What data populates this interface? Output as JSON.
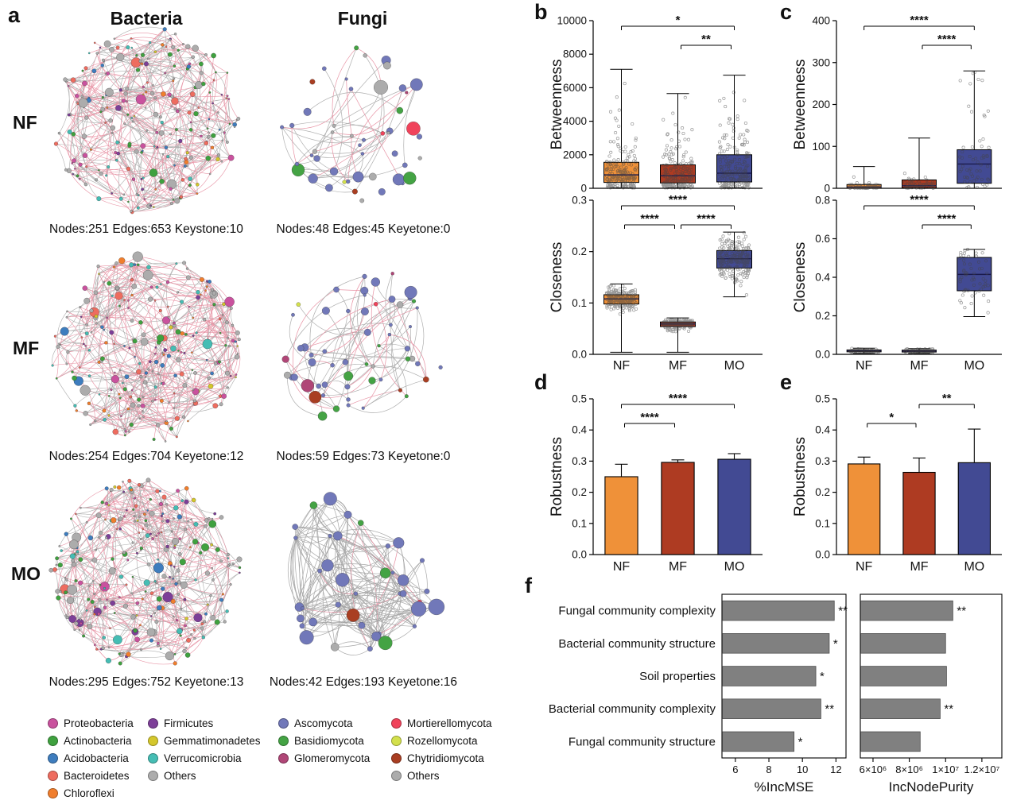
{
  "panels": {
    "a": {
      "label": "a",
      "columns": [
        "Bacteria",
        "Fungi"
      ],
      "rows": [
        "NF",
        "MF",
        "MO"
      ],
      "networks": [
        {
          "group": "NF",
          "kingdom": "Bacteria",
          "nodes": 251,
          "edges": 653,
          "caption": "Nodes:251 Edges:653 Keystone:10"
        },
        {
          "group": "NF",
          "kingdom": "Fungi",
          "nodes": 48,
          "edges": 45,
          "caption": "Nodes:48 Edges:45 Keyetone:0"
        },
        {
          "group": "MF",
          "kingdom": "Bacteria",
          "nodes": 254,
          "edges": 704,
          "caption": "Nodes:254 Edges:704 Keyetone:12"
        },
        {
          "group": "MF",
          "kingdom": "Fungi",
          "nodes": 59,
          "edges": 73,
          "caption": "Nodes:59 Edges:73 Keyetone:0"
        },
        {
          "group": "MO",
          "kingdom": "Bacteria",
          "nodes": 295,
          "edges": 752,
          "caption": "Nodes:295 Edges:752 Keyetone:13"
        },
        {
          "group": "MO",
          "kingdom": "Fungi",
          "nodes": 42,
          "edges": 193,
          "caption": "Nodes:42 Edges:193 Keyetone:16"
        }
      ],
      "legend_bacteria": [
        {
          "label": "Proteobacteria",
          "color": "#C9529E"
        },
        {
          "label": "Actinobacteria",
          "color": "#3FA13F"
        },
        {
          "label": "Acidobacteria",
          "color": "#3E7DBE"
        },
        {
          "label": "Bacteroidetes",
          "color": "#EE6C5F"
        },
        {
          "label": "Chloroflexi",
          "color": "#F07E2D"
        },
        {
          "label": "Firmicutes",
          "color": "#7D3F98"
        },
        {
          "label": "Gemmatimonadetes",
          "color": "#D4C72C"
        },
        {
          "label": "Verrucomicrobia",
          "color": "#45BDB4"
        },
        {
          "label": "Others",
          "color": "#ACACAC"
        }
      ],
      "legend_fungi": [
        {
          "label": "Ascomycota",
          "color": "#7178B9"
        },
        {
          "label": "Basidiomycota",
          "color": "#44A344"
        },
        {
          "label": "Glomeromycota",
          "color": "#B04677"
        },
        {
          "label": "Mortierellomycota",
          "color": "#F0435B"
        },
        {
          "label": "Rozellomycota",
          "color": "#D3E04C"
        },
        {
          "label": "Chytridiomycota",
          "color": "#A93E22"
        },
        {
          "label": "Others",
          "color": "#ACACAC"
        }
      ]
    },
    "b": {
      "label": "b"
    },
    "c": {
      "label": "c"
    },
    "d": {
      "label": "d"
    },
    "e": {
      "label": "e"
    },
    "f": {
      "label": "f"
    }
  },
  "palette": {
    "group_colors": {
      "NF": "#EF9139",
      "MF": "#AE3B22",
      "MO": "#424A93"
    },
    "bar_gray": "#808080",
    "edge_pink": "#E2798F",
    "edge_gray": "#9A9A9A"
  },
  "chart_data": [
    {
      "id": "b1",
      "type": "boxplot",
      "ylabel": "Betweenness",
      "ylim": [
        0,
        10000
      ],
      "yticks": [
        0,
        2000,
        4000,
        6000,
        8000,
        10000
      ],
      "ytick_fmt": "int",
      "categories": [
        "NF",
        "MF",
        "MO"
      ],
      "show_x_labels": false,
      "boxes": [
        {
          "min": 30,
          "q1": 350,
          "median": 800,
          "q3": 1550,
          "max": 7100,
          "n_points": 210,
          "dist": "exp"
        },
        {
          "min": 30,
          "q1": 320,
          "median": 750,
          "q3": 1400,
          "max": 5650,
          "n_points": 210,
          "dist": "exp"
        },
        {
          "min": 30,
          "q1": 380,
          "median": 900,
          "q3": 2000,
          "max": 6750,
          "n_points": 210,
          "dist": "exp"
        }
      ],
      "significance": [
        {
          "a": 0,
          "b": 2,
          "row": 0,
          "label": "*"
        },
        {
          "a": 1,
          "b": 2,
          "row": 1,
          "label": "**"
        }
      ]
    },
    {
      "id": "b2",
      "type": "boxplot",
      "ylabel": "Closeness",
      "ylim": [
        0,
        0.3
      ],
      "yticks": [
        0,
        0.1,
        0.2,
        0.3
      ],
      "ytick_fmt": "1dp",
      "categories": [
        "NF",
        "MF",
        "MO"
      ],
      "show_x_labels": true,
      "boxes": [
        {
          "min": 0.004,
          "q1": 0.098,
          "median": 0.108,
          "q3": 0.116,
          "max": 0.137,
          "n_points": 220,
          "dist": "normal"
        },
        {
          "min": 0.004,
          "q1": 0.054,
          "median": 0.059,
          "q3": 0.063,
          "max": 0.071,
          "n_points": 220,
          "dist": "normal"
        },
        {
          "min": 0.112,
          "q1": 0.168,
          "median": 0.186,
          "q3": 0.202,
          "max": 0.238,
          "n_points": 220,
          "dist": "normal"
        }
      ],
      "significance": [
        {
          "a": 0,
          "b": 2,
          "row": 0,
          "label": "****"
        },
        {
          "a": 0,
          "b": 1,
          "row": 1,
          "label": "****"
        },
        {
          "a": 1,
          "b": 2,
          "row": 1,
          "label": "****"
        }
      ]
    },
    {
      "id": "c1",
      "type": "boxplot",
      "ylabel": "Betweenness",
      "ylim": [
        0,
        400
      ],
      "yticks": [
        0,
        100,
        200,
        300,
        400
      ],
      "ytick_fmt": "int",
      "categories": [
        "NF",
        "MF",
        "MO"
      ],
      "show_x_labels": false,
      "boxes": [
        {
          "min": 0,
          "q1": 0,
          "median": 3,
          "q3": 9,
          "max": 52,
          "n_points": 65,
          "dist": "exp"
        },
        {
          "min": 0,
          "q1": 1,
          "median": 6,
          "q3": 20,
          "max": 120,
          "n_points": 70,
          "dist": "exp"
        },
        {
          "min": 0,
          "q1": 12,
          "median": 58,
          "q3": 92,
          "max": 280,
          "n_points": 58,
          "dist": "exp"
        }
      ],
      "significance": [
        {
          "a": 0,
          "b": 2,
          "row": 0,
          "label": "****"
        },
        {
          "a": 1,
          "b": 2,
          "row": 1,
          "label": "****"
        }
      ]
    },
    {
      "id": "c2",
      "type": "boxplot",
      "ylabel": "Closeness",
      "ylim": [
        0,
        0.8
      ],
      "yticks": [
        0,
        0.2,
        0.4,
        0.6,
        0.8
      ],
      "ytick_fmt": "1dp",
      "categories": [
        "NF",
        "MF",
        "MO"
      ],
      "show_x_labels": true,
      "boxes": [
        {
          "min": 0.005,
          "q1": 0.013,
          "median": 0.018,
          "q3": 0.023,
          "max": 0.032,
          "n_points": 65,
          "dist": "normal"
        },
        {
          "min": 0.005,
          "q1": 0.012,
          "median": 0.017,
          "q3": 0.022,
          "max": 0.03,
          "n_points": 70,
          "dist": "normal"
        },
        {
          "min": 0.196,
          "q1": 0.33,
          "median": 0.415,
          "q3": 0.503,
          "max": 0.545,
          "n_points": 58,
          "dist": "normal"
        }
      ],
      "significance": [
        {
          "a": 0,
          "b": 2,
          "row": 0,
          "label": "****"
        },
        {
          "a": 1,
          "b": 2,
          "row": 1,
          "label": "****"
        }
      ]
    },
    {
      "id": "d",
      "type": "bar",
      "ylabel": "Robustness",
      "ylim": [
        0,
        0.5
      ],
      "yticks": [
        0,
        0.1,
        0.2,
        0.3,
        0.4,
        0.5
      ],
      "ytick_fmt": "1dp",
      "categories": [
        "NF",
        "MF",
        "MO"
      ],
      "values": [
        0.25,
        0.296,
        0.306
      ],
      "errors": [
        0.04,
        0.008,
        0.018
      ],
      "significance": [
        {
          "a": 0,
          "b": 2,
          "row": 0,
          "label": "****"
        },
        {
          "a": 0,
          "b": 1,
          "row": 1,
          "label": "****"
        }
      ]
    },
    {
      "id": "e",
      "type": "bar",
      "ylabel": "Robustness",
      "ylim": [
        0,
        0.5
      ],
      "yticks": [
        0,
        0.1,
        0.2,
        0.3,
        0.4,
        0.5
      ],
      "ytick_fmt": "1dp",
      "categories": [
        "NF",
        "MF",
        "MO"
      ],
      "values": [
        0.291,
        0.264,
        0.295
      ],
      "errors": [
        0.022,
        0.046,
        0.108
      ],
      "significance": [
        {
          "a": 1,
          "b": 2,
          "row": 0,
          "label": "**"
        },
        {
          "a": 0,
          "b": 1,
          "row": 1,
          "label": "*"
        }
      ]
    },
    {
      "id": "f1",
      "type": "hbar",
      "xlabel": "%IncMSE",
      "xlim": [
        5.2,
        12.6
      ],
      "xticks": [
        6,
        8,
        10,
        12
      ],
      "xtick_labels": [
        "6",
        "8",
        "10",
        "12"
      ],
      "categories": [
        "Fungal community complexity",
        "Bacterial community structure",
        "Soil properties",
        "Bacterial community complexity",
        "Fungal community structure"
      ],
      "values": [
        11.9,
        11.6,
        10.8,
        11.1,
        9.5
      ],
      "sig": [
        "**",
        "*",
        "*",
        "**",
        "*"
      ],
      "show_cat_labels": true
    },
    {
      "id": "f2",
      "type": "hbar",
      "xlabel": "IncNodePurity",
      "xlim": [
        5300000,
        13100000
      ],
      "xticks": [
        6000000,
        8000000,
        10000000,
        12000000
      ],
      "xtick_labels": [
        "6×10⁶",
        "8×10⁶",
        "1×10⁷",
        "1.2×10⁷"
      ],
      "categories": [
        "Fungal community complexity",
        "Bacterial community structure",
        "Soil properties",
        "Bacterial community complexity",
        "Fungal community structure"
      ],
      "values": [
        10400000,
        10000000,
        10050000,
        9700000,
        8600000
      ],
      "sig": [
        "**",
        "",
        "",
        "**",
        ""
      ],
      "show_cat_labels": false
    }
  ]
}
